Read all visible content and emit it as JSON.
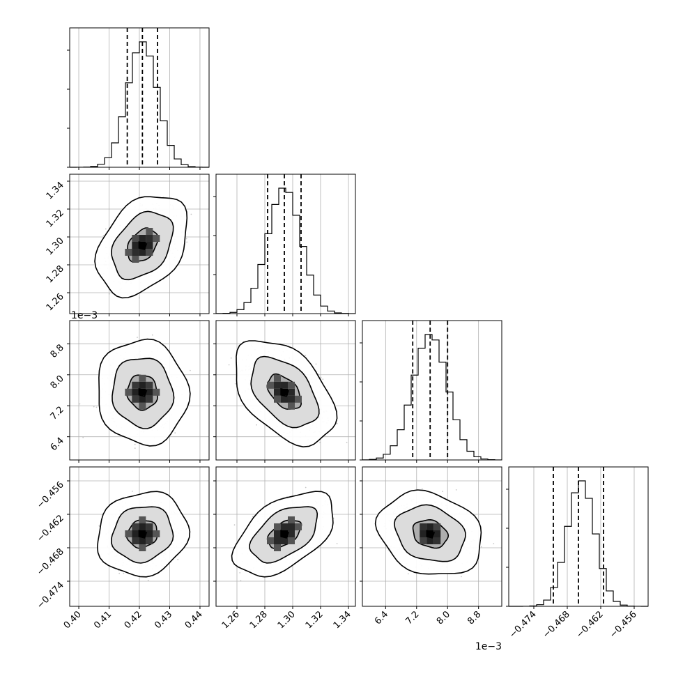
{
  "chart_data": {
    "type": "corner",
    "title": "",
    "params": [
      {
        "ticks": [
          0.4,
          0.41,
          0.42,
          0.43,
          0.44
        ],
        "tick_labels": [
          "0.40",
          "0.41",
          "0.42",
          "0.43",
          "0.44"
        ],
        "range": [
          0.397,
          0.443
        ],
        "scale_label": "",
        "mean": 0.421,
        "sd": 0.005,
        "quantiles": [
          0.416,
          0.421,
          0.426
        ]
      },
      {
        "ticks": [
          1.26,
          1.28,
          1.3,
          1.32,
          1.34
        ],
        "tick_labels": [
          "1.26",
          "1.28",
          "1.30",
          "1.32",
          "1.34"
        ],
        "range": [
          1.245,
          1.345
        ],
        "scale_label": "",
        "mean": 1.294,
        "sd": 0.012,
        "quantiles": [
          1.282,
          1.294,
          1.306
        ]
      },
      {
        "ticks": [
          6.4,
          7.2,
          8.0,
          8.8
        ],
        "tick_labels": [
          "6.4",
          "7.2",
          "8.0",
          "8.8"
        ],
        "range": [
          5.8,
          9.4
        ],
        "scale_label": "1e−3",
        "mean": 7.55,
        "sd": 0.45,
        "quantiles": [
          7.1,
          7.55,
          8.0
        ]
      },
      {
        "ticks": [
          -0.474,
          -0.468,
          -0.462,
          -0.456
        ],
        "tick_labels": [
          "−0.474",
          "−0.468",
          "−0.462",
          "−0.456"
        ],
        "range": [
          -0.4785,
          -0.4535
        ],
        "scale_label": "",
        "mean": -0.4655,
        "sd": 0.0025,
        "quantiles": [
          -0.4705,
          -0.466,
          -0.4615
        ]
      }
    ],
    "correlations": [
      {
        "i": 1,
        "j": 0,
        "rho": 0.35
      },
      {
        "i": 2,
        "j": 0,
        "rho": -0.05
      },
      {
        "i": 2,
        "j": 1,
        "rho": -0.45
      },
      {
        "i": 3,
        "j": 0,
        "rho": 0.1
      },
      {
        "i": 3,
        "j": 1,
        "rho": 0.5
      },
      {
        "i": 3,
        "j": 2,
        "rho": -0.2
      }
    ],
    "histogram_bins": 20,
    "contour_levels": [
      0.393,
      0.865,
      0.989
    ],
    "grid": true,
    "legend": "none"
  }
}
